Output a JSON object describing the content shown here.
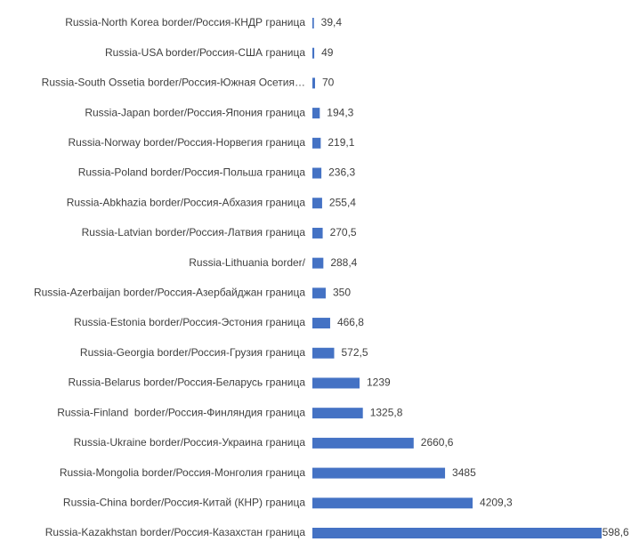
{
  "chart_data": {
    "type": "hbar",
    "color": "#4472c4",
    "categories": [
      "Russia-North Korea border/Россия-КНДР граница",
      "Russia-USA border/Россия-США граница",
      "Russia-South Ossetia border/Россия-Южная Осетия…",
      "Russia-Japan border/Россия-Япония граница",
      "Russia-Norway border/Россия-Норвегия граница",
      "Russia-Poland border/Россия-Польша граница",
      "Russia-Abkhazia border/Россия-Абхазия граница",
      "Russia-Latvian border/Россия-Латвия граница",
      "Russia-Lithuania border/",
      "Russia-Azerbaijan border/Россия-Азербайджан граница",
      "Russia-Estonia border/Россия-Эстония граница",
      "Russia-Georgia border/Россия-Грузия граница",
      "Russia-Belarus border/Россия-Беларусь граница",
      "Russia-Finland  border/Россия-Финляндия граница",
      "Russia-Ukraine border/Россия-Украина граница",
      "Russia-Mongolia border/Россия-Монголия граница",
      "Russia-China border/Россия-Китай (КНР) граница",
      "Russia-Kazakhstan border/Россия-Казахстан граница"
    ],
    "values": [
      39.4,
      49,
      70,
      194.3,
      219.1,
      236.3,
      255.4,
      270.5,
      288.4,
      350,
      466.8,
      572.5,
      1239,
      1325.8,
      2660.6,
      3485,
      4209.3,
      7598.6
    ],
    "value_labels": [
      "39,4",
      "49",
      "70",
      "194,3",
      "219,1",
      "236,3",
      "255,4",
      "270,5",
      "288,4",
      "350",
      "466,8",
      "572,5",
      "1239",
      "1325,8",
      "2660,6",
      "3485",
      "4209,3",
      "7598,6"
    ]
  }
}
